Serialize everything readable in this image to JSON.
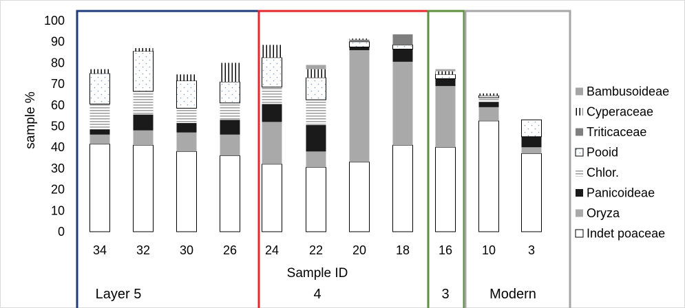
{
  "chart_data": {
    "type": "bar",
    "stacked": true,
    "ylabel": "sample %",
    "xlabel": "Sample ID",
    "ylim": [
      0,
      100
    ],
    "yticks": [
      0,
      10,
      20,
      30,
      40,
      50,
      60,
      70,
      80,
      90,
      100
    ],
    "grid": false,
    "legend_position": "right",
    "categories": [
      "34",
      "32",
      "30",
      "26",
      "24",
      "22",
      "20",
      "18",
      "16",
      "10",
      "3"
    ],
    "groups": [
      {
        "label": "Layer 5",
        "color": "#1f3a7a",
        "members": [
          "34",
          "32",
          "30",
          "26"
        ]
      },
      {
        "label": "4",
        "color": "#e8262d",
        "members": [
          "24",
          "22",
          "20",
          "18"
        ]
      },
      {
        "label": "3",
        "color": "#5c8f3e",
        "members": [
          "16"
        ]
      },
      {
        "label": "Modern",
        "color": "#a6a6a6",
        "members": [
          "10",
          "3"
        ]
      }
    ],
    "series": [
      {
        "name": "Indet poaceae",
        "pattern": "white",
        "values": [
          41.5,
          41,
          38,
          36,
          32,
          30.5,
          33,
          41,
          40,
          52.5,
          37
        ]
      },
      {
        "name": "Oryza",
        "pattern": "lightgray",
        "values": [
          4.5,
          7,
          9,
          10,
          20,
          7.5,
          53,
          39.5,
          29,
          6.5,
          3
        ]
      },
      {
        "name": "Panicoideae",
        "pattern": "black",
        "values": [
          2.5,
          7.5,
          4.5,
          7,
          8.5,
          12.5,
          1.5,
          6,
          3.5,
          2.5,
          5
        ]
      },
      {
        "name": "Chlor.",
        "pattern": "horizontal-stripes",
        "values": [
          12,
          11,
          7,
          8,
          8,
          12,
          0,
          0,
          0,
          2,
          0
        ]
      },
      {
        "name": "Pooid",
        "pattern": "dotted",
        "values": [
          14.5,
          19,
          13,
          10,
          14,
          10.5,
          2.5,
          2,
          2,
          1,
          8
        ]
      },
      {
        "name": "Triticaceae",
        "pattern": "darkgray",
        "values": [
          0,
          0,
          0,
          0,
          0,
          0,
          1,
          5,
          0,
          0,
          0
        ]
      },
      {
        "name": "Cyperaceae",
        "pattern": "vertical-lines",
        "values": [
          2,
          1.5,
          3,
          9,
          6,
          4,
          0.5,
          0,
          1.5,
          1,
          0
        ]
      },
      {
        "name": "Bambusoideae",
        "pattern": "gray",
        "values": [
          0,
          0,
          0,
          0,
          0,
          2,
          0,
          0,
          1,
          0,
          0
        ]
      }
    ],
    "legend_order": [
      "Bambusoideae",
      "Cyperaceae",
      "Triticaceae",
      "Pooid",
      "Chlor.",
      "Panicoideae",
      "Oryza",
      "Indet poaceae"
    ]
  }
}
